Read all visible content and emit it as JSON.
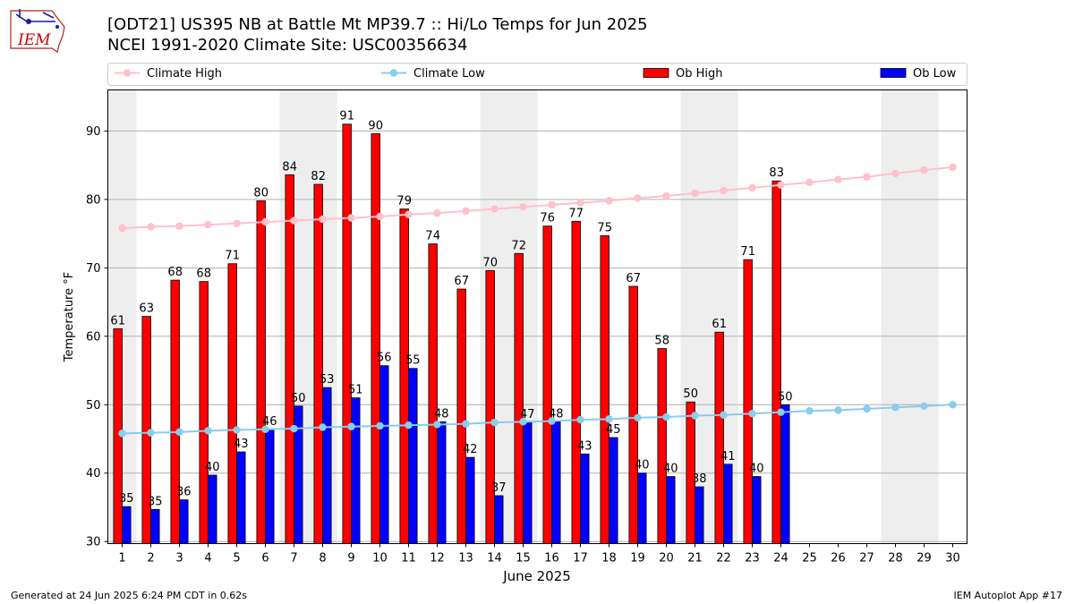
{
  "header": {
    "title_line1": "[ODT21] US395 NB at Battle Mt MP39.7  :: Hi/Lo Temps for Jun 2025",
    "title_line2": "NCEI 1991-2020 Climate Site: USC00356634",
    "logo_text": "IEM"
  },
  "footer": {
    "generated": "Generated at 24 Jun 2025 6:24 PM CDT in 0.62s",
    "app": "IEM Autoplot App #17"
  },
  "colors": {
    "ob_high": "#ff0000",
    "ob_low": "#0000ff",
    "climate_high": "#ffc0cb",
    "climate_low": "#87ceeb",
    "weekend_shade": "#eeeeee",
    "grid": "#b0b0b0"
  },
  "chart_data": {
    "type": "bar",
    "xlabel": "June 2025",
    "ylabel": "Temperature °F",
    "x": [
      1,
      2,
      3,
      4,
      5,
      6,
      7,
      8,
      9,
      10,
      11,
      12,
      13,
      14,
      15,
      16,
      17,
      18,
      19,
      20,
      21,
      22,
      23,
      24,
      25,
      26,
      27,
      28,
      29,
      30
    ],
    "xlim": [
      0.5,
      30.5
    ],
    "ylim": [
      29.7,
      96
    ],
    "yticks": [
      30,
      40,
      50,
      60,
      70,
      80,
      90
    ],
    "grid": "horizontal",
    "legend": "top, horizontal",
    "shaded_days": [
      1,
      7,
      8,
      14,
      15,
      21,
      22,
      28,
      29
    ],
    "series": [
      {
        "name": "Climate High",
        "kind": "line",
        "values": [
          75.8,
          76.0,
          76.1,
          76.3,
          76.5,
          76.7,
          76.9,
          77.1,
          77.3,
          77.5,
          77.8,
          78.0,
          78.3,
          78.6,
          78.9,
          79.2,
          79.5,
          79.8,
          80.2,
          80.5,
          80.9,
          81.3,
          81.7,
          82.1,
          82.5,
          82.9,
          83.3,
          83.8,
          84.3,
          84.7
        ]
      },
      {
        "name": "Climate Low",
        "kind": "line",
        "values": [
          45.8,
          45.9,
          46.0,
          46.2,
          46.3,
          46.4,
          46.5,
          46.7,
          46.8,
          46.9,
          47.0,
          47.1,
          47.2,
          47.4,
          47.5,
          47.6,
          47.8,
          47.9,
          48.1,
          48.2,
          48.4,
          48.5,
          48.7,
          48.9,
          49.1,
          49.2,
          49.4,
          49.6,
          49.8,
          50.0
        ]
      },
      {
        "name": "Ob High",
        "kind": "bar",
        "values": [
          61,
          63,
          68,
          68,
          71,
          80,
          84,
          82,
          91,
          90,
          79,
          74,
          67,
          70,
          72,
          76,
          77,
          75,
          67,
          58,
          50,
          61,
          71,
          83,
          null,
          null,
          null,
          null,
          null,
          null
        ],
        "heights": [
          61.1,
          62.9,
          68.2,
          68.0,
          70.6,
          79.8,
          83.6,
          82.2,
          91.0,
          89.6,
          78.6,
          73.5,
          66.9,
          69.6,
          72.1,
          76.1,
          76.8,
          74.7,
          67.3,
          58.2,
          50.4,
          60.6,
          71.2,
          82.7,
          null,
          null,
          null,
          null,
          null,
          null
        ]
      },
      {
        "name": "Ob Low",
        "kind": "bar",
        "values": [
          35,
          35,
          36,
          40,
          43,
          46,
          50,
          53,
          51,
          56,
          55,
          48,
          42,
          37,
          47,
          48,
          43,
          45,
          40,
          40,
          38,
          41,
          40,
          50,
          null,
          null,
          null,
          null,
          null,
          null
        ],
        "heights": [
          35.1,
          34.7,
          36.1,
          39.7,
          43.1,
          46.4,
          49.8,
          52.5,
          51.0,
          55.7,
          55.3,
          47.5,
          42.3,
          36.7,
          47.4,
          47.5,
          42.8,
          45.2,
          40.0,
          39.5,
          38.0,
          41.3,
          39.5,
          50.0,
          null,
          null,
          null,
          null,
          null,
          null
        ]
      }
    ]
  }
}
